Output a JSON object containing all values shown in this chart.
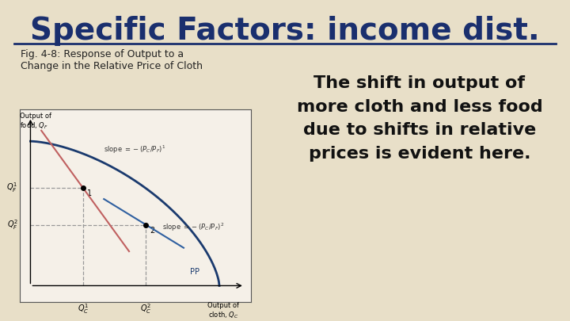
{
  "title": "Specific Factors: income dist.",
  "title_color": "#1a2f6e",
  "title_fontsize": 28,
  "bg_color": "#e8dfc8",
  "subtitle": "  Fig. 4-8: Response of Output to a\n  Change in the Relative Price of Cloth",
  "subtitle_fontsize": 9,
  "body_text": "The shift in output of\nmore cloth and less food\ndue to shifts in relative\nprices is evident here.",
  "body_fontsize": 16,
  "body_color": "#111111",
  "diagram_bg": "#f5f0e8",
  "pp_curve_color": "#1a3a6e",
  "slope1_color": "#c06060",
  "slope2_color": "#3060a0",
  "dashed_color": "#999999"
}
